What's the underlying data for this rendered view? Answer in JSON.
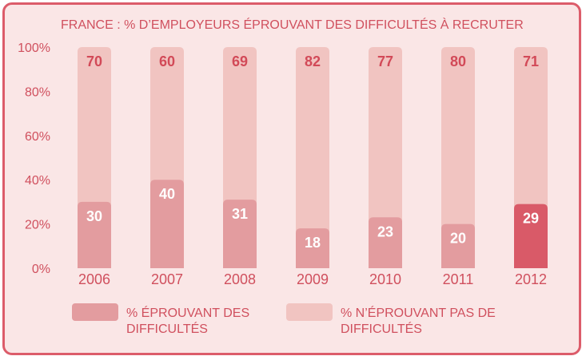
{
  "chart_data": {
    "type": "bar",
    "stacked": true,
    "title": "FRANCE : % D’EMPLOYEURS ÉPROUVANT DES DIFFICULTÉS À RECRUTER",
    "categories": [
      "2006",
      "2007",
      "2008",
      "2009",
      "2010",
      "2011",
      "2012"
    ],
    "series": [
      {
        "name": "% ÉPROUVANT DES DIFFICULTÉS",
        "values": [
          30,
          40,
          31,
          18,
          23,
          20,
          29
        ],
        "color": "#e39c9f",
        "highlight_color": "#d95a68",
        "highlight_index": 6
      },
      {
        "name": "% N’ÉPROUVANT PAS DE DIFFICULTÉS",
        "values": [
          70,
          60,
          69,
          82,
          77,
          80,
          71
        ],
        "color": "#f1c4c1"
      }
    ],
    "y_ticks": [
      "0%",
      "20%",
      "40%",
      "60%",
      "80%",
      "100%"
    ],
    "ylim": [
      0,
      100
    ],
    "grid": false,
    "legend_position": "bottom"
  }
}
